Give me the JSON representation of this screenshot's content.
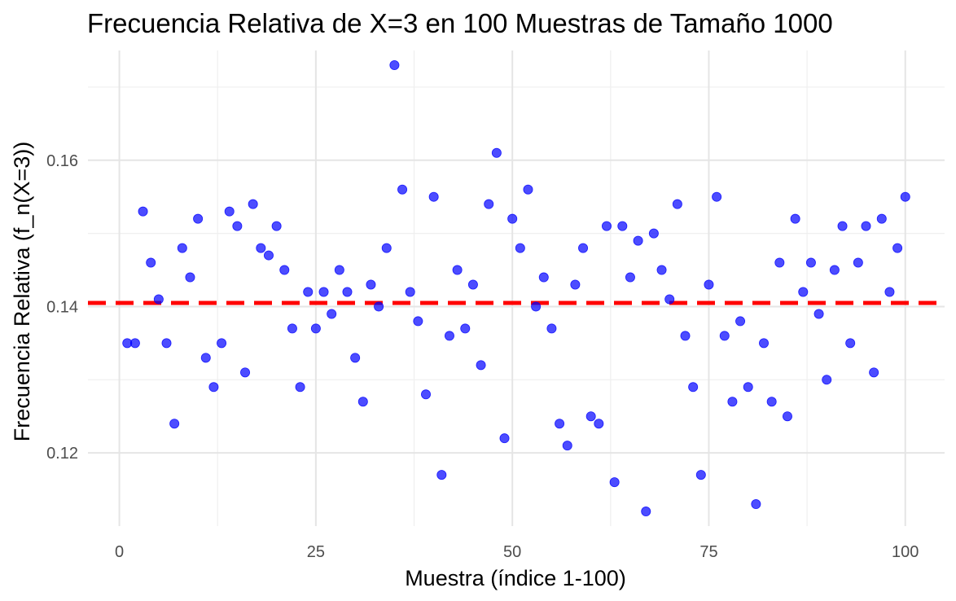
{
  "chart_data": {
    "type": "scatter",
    "title": "Frecuencia Relativa de X=3 en 100 Muestras de Tamaño 1000",
    "xlabel": "Muestra (índice 1-100)",
    "ylabel": "Frecuencia Relativa (f_n(X=3))",
    "xlim": [
      -4,
      105
    ],
    "ylim": [
      0.11,
      0.175
    ],
    "x_ticks": [
      0,
      25,
      50,
      75,
      100
    ],
    "x_tick_labels": [
      "0",
      "25",
      "50",
      "75",
      "100"
    ],
    "y_ticks": [
      0.12,
      0.14,
      0.16
    ],
    "y_tick_labels": [
      "0.12",
      "0.14",
      "0.16"
    ],
    "grid": true,
    "point_color": "#0000ff",
    "reference_line": {
      "y": 0.1405,
      "color": "#ff0000",
      "style": "dashed"
    },
    "x": [
      1,
      2,
      3,
      4,
      5,
      6,
      7,
      8,
      9,
      10,
      11,
      12,
      13,
      14,
      15,
      16,
      17,
      18,
      19,
      20,
      21,
      22,
      23,
      24,
      25,
      26,
      27,
      28,
      29,
      30,
      31,
      32,
      33,
      34,
      35,
      36,
      37,
      38,
      39,
      40,
      41,
      42,
      43,
      44,
      45,
      46,
      47,
      48,
      49,
      50,
      51,
      52,
      53,
      54,
      55,
      56,
      57,
      58,
      59,
      60,
      61,
      62,
      63,
      64,
      65,
      66,
      67,
      68,
      69,
      70,
      71,
      72,
      73,
      74,
      75,
      76,
      77,
      78,
      79,
      80,
      81,
      82,
      83,
      84,
      85,
      86,
      87,
      88,
      89,
      90,
      91,
      92,
      93,
      94,
      95,
      96,
      97,
      98,
      99,
      100
    ],
    "y": [
      0.135,
      0.135,
      0.153,
      0.146,
      0.141,
      0.135,
      0.124,
      0.148,
      0.144,
      0.152,
      0.133,
      0.129,
      0.135,
      0.153,
      0.151,
      0.131,
      0.154,
      0.148,
      0.147,
      0.151,
      0.145,
      0.137,
      0.129,
      0.142,
      0.137,
      0.142,
      0.139,
      0.145,
      0.142,
      0.133,
      0.127,
      0.143,
      0.14,
      0.148,
      0.173,
      0.156,
      0.142,
      0.138,
      0.128,
      0.155,
      0.117,
      0.136,
      0.145,
      0.137,
      0.143,
      0.132,
      0.154,
      0.161,
      0.122,
      0.152,
      0.148,
      0.156,
      0.14,
      0.144,
      0.137,
      0.124,
      0.121,
      0.143,
      0.148,
      0.125,
      0.124,
      0.151,
      0.116,
      0.151,
      0.144,
      0.149,
      0.112,
      0.15,
      0.145,
      0.141,
      0.154,
      0.136,
      0.129,
      0.117,
      0.143,
      0.155,
      0.136,
      0.127,
      0.138,
      0.129,
      0.113,
      0.135,
      0.127,
      0.146,
      0.125,
      0.152,
      0.142,
      0.146,
      0.139,
      0.13,
      0.145,
      0.151,
      0.135,
      0.146,
      0.151,
      0.131,
      0.152,
      0.142,
      0.148,
      0.155
    ]
  }
}
